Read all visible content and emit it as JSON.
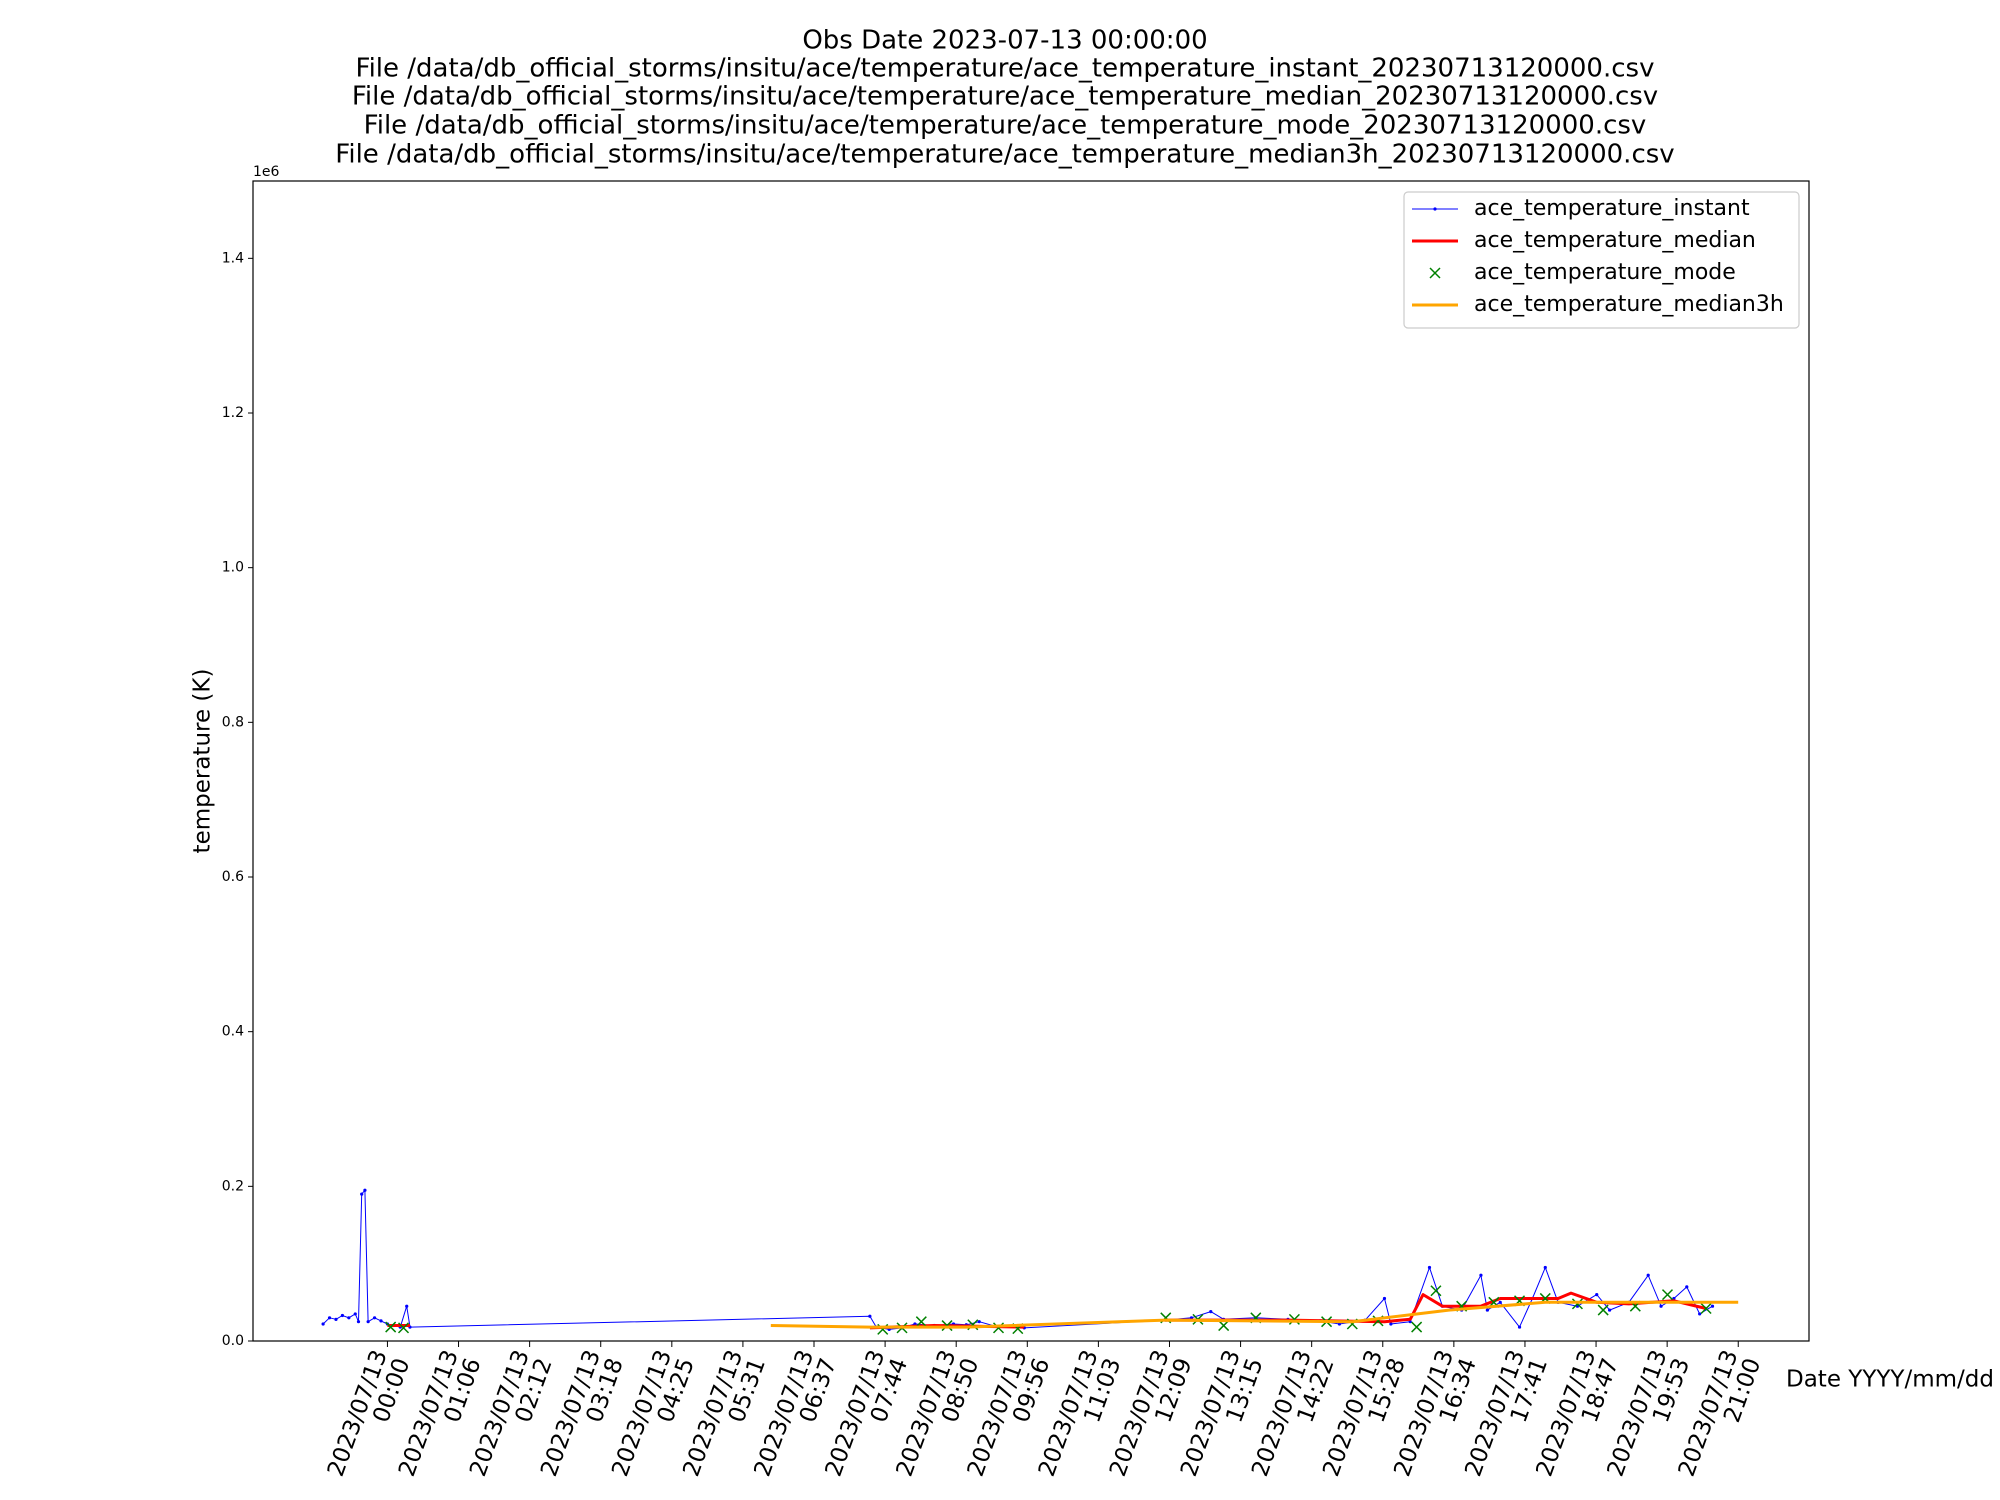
{
  "chart_data": {
    "type": "line",
    "title": [
      "Obs Date 2023-07-13 00:00:00",
      "File /data/db_official_storms/insitu/ace/temperature/ace_temperature_instant_20230713120000.csv",
      "File /data/db_official_storms/insitu/ace/temperature/ace_temperature_median_20230713120000.csv",
      "File /data/db_official_storms/insitu/ace/temperature/ace_temperature_mode_20230713120000.csv",
      "File /data/db_official_storms/insitu/ace/temperature/ace_temperature_median3h_20230713120000.csv"
    ],
    "y_label": "temperature (K)",
    "x_label": "Date YYYY/mm/dd",
    "y_offset_label": "1e6",
    "xlim": [
      -2.09,
      22.1
    ],
    "xticks": [
      {
        "value": 0,
        "label": "2023/07/13\n00:00"
      },
      {
        "value": 1.1053,
        "label": "2023/07/13\n01:06"
      },
      {
        "value": 2.2105,
        "label": "2023/07/13\n02:12"
      },
      {
        "value": 3.3158,
        "label": "2023/07/13\n03:18"
      },
      {
        "value": 4.4211,
        "label": "2023/07/13\n04:25"
      },
      {
        "value": 5.5263,
        "label": "2023/07/13\n05:31"
      },
      {
        "value": 6.6316,
        "label": "2023/07/13\n06:37"
      },
      {
        "value": 7.7368,
        "label": "2023/07/13\n07:44"
      },
      {
        "value": 8.8421,
        "label": "2023/07/13\n08:50"
      },
      {
        "value": 9.9474,
        "label": "2023/07/13\n09:56"
      },
      {
        "value": 11.0526,
        "label": "2023/07/13\n11:03"
      },
      {
        "value": 12.1579,
        "label": "2023/07/13\n12:09"
      },
      {
        "value": 13.2632,
        "label": "2023/07/13\n13:15"
      },
      {
        "value": 14.3684,
        "label": "2023/07/13\n14:22"
      },
      {
        "value": 15.4737,
        "label": "2023/07/13\n15:28"
      },
      {
        "value": 16.5789,
        "label": "2023/07/13\n16:34"
      },
      {
        "value": 17.6842,
        "label": "2023/07/13\n17:41"
      },
      {
        "value": 18.7895,
        "label": "2023/07/13\n18:47"
      },
      {
        "value": 19.8947,
        "label": "2023/07/13\n19:53"
      },
      {
        "value": 21,
        "label": "2023/07/13\n21:00"
      }
    ],
    "ylim": [
      0,
      1500000
    ],
    "yticks": [
      {
        "value": 0,
        "label": "0.0"
      },
      {
        "value": 200000,
        "label": "0.2"
      },
      {
        "value": 400000,
        "label": "0.4"
      },
      {
        "value": 600000,
        "label": "0.6"
      },
      {
        "value": 800000,
        "label": "0.8"
      },
      {
        "value": 1000000,
        "label": "1.0"
      },
      {
        "value": 1200000,
        "label": "1.2"
      },
      {
        "value": 1400000,
        "label": "1.4"
      }
    ],
    "grid": false,
    "legend": "upper right",
    "series": [
      {
        "name": "ace_temperature_instant",
        "color": "#0000ff",
        "style": "thin-line-dots",
        "x": [
          -1.0,
          -0.9,
          -0.8,
          -0.7,
          -0.6,
          -0.5,
          -0.45,
          -0.4,
          -0.35,
          -0.3,
          -0.2,
          -0.1,
          0,
          0.1,
          0.2,
          0.3,
          0.35,
          7.5,
          7.6,
          7.8,
          8.0,
          8.2,
          8.5,
          8.8,
          9.0,
          9.2,
          9.5,
          9.9,
          12.1,
          12.5,
          12.8,
          13.0,
          13.5,
          14.0,
          14.5,
          14.8,
          15.2,
          15.5,
          15.6,
          15.9,
          16.2,
          16.4,
          16.7,
          17.0,
          17.1,
          17.3,
          17.6,
          17.8,
          18.0,
          18.2,
          18.5,
          18.8,
          19.0,
          19.3,
          19.6,
          19.8,
          20.0,
          20.2,
          20.4,
          20.6
        ],
        "values": [
          22000,
          30000,
          28000,
          33000,
          30000,
          35000,
          25000,
          190000,
          195000,
          25000,
          30000,
          26000,
          22000,
          20000,
          18000,
          45000,
          18000,
          32000,
          18000,
          15000,
          17000,
          22000,
          20000,
          22000,
          21000,
          25000,
          18000,
          17000,
          27000,
          30000,
          38000,
          28000,
          30000,
          28000,
          26000,
          22000,
          27000,
          55000,
          22000,
          25000,
          95000,
          45000,
          40000,
          85000,
          40000,
          50000,
          18000,
          55000,
          95000,
          50000,
          45000,
          60000,
          40000,
          50000,
          85000,
          45000,
          55000,
          70000,
          35000,
          45000
        ]
      },
      {
        "name": "ace_temperature_median",
        "color": "#ff0000",
        "style": "line",
        "x": [
          0,
          0.35,
          4,
          7.5,
          8.5,
          9.9,
          11,
          12.1,
          14.0,
          15.5,
          15.9,
          16.1,
          16.4,
          17.0,
          17.3,
          18.2,
          18.4,
          18.8,
          19.3,
          20.0,
          20.5
        ],
        "values": [
          20000,
          20000,
          null,
          17000,
          20000,
          18000,
          null,
          27000,
          27000,
          25000,
          28000,
          60000,
          45000,
          45000,
          55000,
          55000,
          62000,
          50000,
          48000,
          52000,
          42000
        ]
      },
      {
        "name": "ace_temperature_mode",
        "color": "#008000",
        "style": "x-marker",
        "x": [
          0.05,
          0.25,
          7.7,
          8.0,
          8.3,
          8.7,
          9.1,
          9.5,
          9.8,
          12.1,
          12.6,
          13.0,
          13.5,
          14.1,
          14.6,
          15.0,
          15.4,
          16.0,
          16.3,
          16.7,
          17.2,
          17.6,
          18.0,
          18.5,
          18.9,
          19.4,
          19.9,
          20.5
        ],
        "values": [
          18000,
          17000,
          15000,
          17000,
          25000,
          20000,
          21000,
          17000,
          16000,
          30000,
          28000,
          20000,
          30000,
          28000,
          25000,
          22000,
          26000,
          18000,
          65000,
          45000,
          50000,
          52000,
          55000,
          48000,
          40000,
          45000,
          60000,
          42000
        ]
      },
      {
        "name": "ace_temperature_median3h",
        "color": "#ffa500",
        "style": "line",
        "x": [
          5.96,
          7.5,
          9.0,
          12.1,
          15.0,
          16.5,
          18.0,
          19.5,
          21.0
        ],
        "values": [
          20000,
          18000,
          18000,
          27000,
          25000,
          40000,
          50000,
          50000,
          50000
        ]
      }
    ]
  }
}
